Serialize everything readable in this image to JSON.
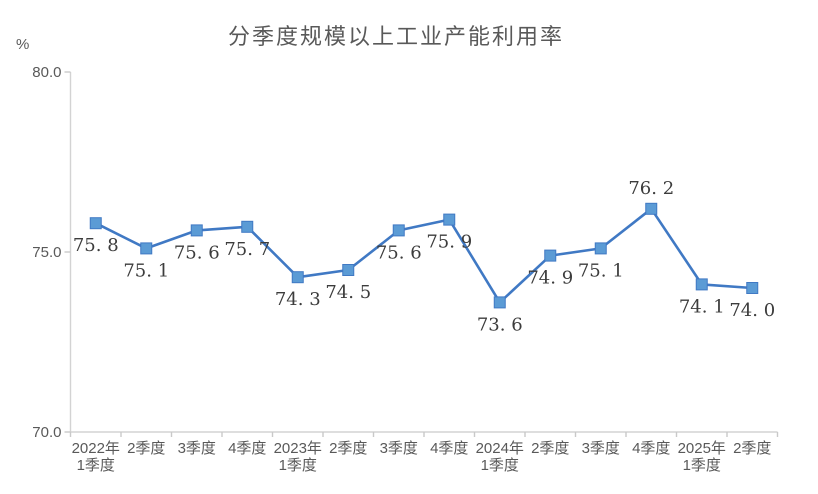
{
  "page": {
    "background_color": "#ffffff"
  },
  "chart_data": {
    "type": "line",
    "title": "分季度规模以上工业产能利用率",
    "y_axis_unit": "%",
    "categories": [
      "2022年\n1季度",
      "2季度",
      "3季度",
      "4季度",
      "2023年\n1季度",
      "2季度",
      "3季度",
      "4季度",
      "2024年\n1季度",
      "2季度",
      "3季度",
      "4季度",
      "2025年\n1季度",
      "2季度"
    ],
    "values": [
      75.8,
      75.1,
      75.6,
      75.7,
      74.3,
      74.5,
      75.6,
      75.9,
      73.6,
      74.9,
      75.1,
      76.2,
      74.1,
      74.0
    ],
    "label_placement": [
      "below",
      "below",
      "below",
      "below",
      "below",
      "below",
      "below",
      "below",
      "below",
      "below",
      "below",
      "above",
      "below",
      "below"
    ],
    "ylim": [
      70.0,
      80.0
    ],
    "y_ticks": [
      80.0,
      75.0,
      70.0
    ],
    "y_tick_labels": [
      "80.0",
      "75.0",
      "70.0"
    ],
    "grid": false,
    "legend": "none",
    "marker_shape": "square",
    "colors": {
      "line": "#4079C4",
      "marker_fill": "#5B9BD5",
      "marker_stroke": "#4079C4",
      "axis_line": "#D3D3D3",
      "tick_mark": "#C9C9C9",
      "title_text": "#595959",
      "axis_text": "#595959",
      "data_label_text": "#3C3C3C"
    }
  }
}
